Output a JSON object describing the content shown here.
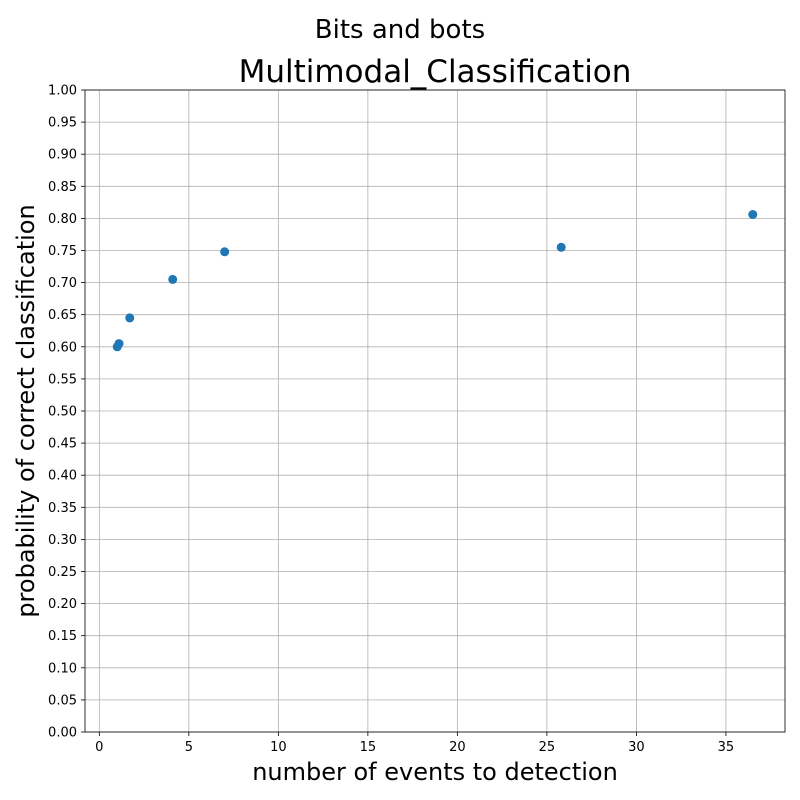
{
  "figure": {
    "suptitle": "Bits and bots"
  },
  "chart_data": {
    "type": "scatter",
    "title": "Multimodal_Classification",
    "xlabel": "number of events to detection",
    "ylabel": "probability of correct classification",
    "xlim": [
      -0.8,
      38.3
    ],
    "ylim": [
      0.0,
      1.0
    ],
    "x_ticks": [
      0,
      5,
      10,
      15,
      20,
      25,
      30,
      35
    ],
    "y_ticks": [
      0.0,
      0.05,
      0.1,
      0.15,
      0.2,
      0.25,
      0.3,
      0.35,
      0.4,
      0.45,
      0.5,
      0.55,
      0.6,
      0.65,
      0.7,
      0.75,
      0.8,
      0.85,
      0.9,
      0.95,
      1.0
    ],
    "grid": true,
    "marker_color": "#1f77b4",
    "points": [
      {
        "x": 1.0,
        "y": 0.6
      },
      {
        "x": 1.1,
        "y": 0.605
      },
      {
        "x": 1.7,
        "y": 0.645
      },
      {
        "x": 4.1,
        "y": 0.705
      },
      {
        "x": 7.0,
        "y": 0.748
      },
      {
        "x": 25.8,
        "y": 0.755
      },
      {
        "x": 36.5,
        "y": 0.806
      }
    ]
  }
}
